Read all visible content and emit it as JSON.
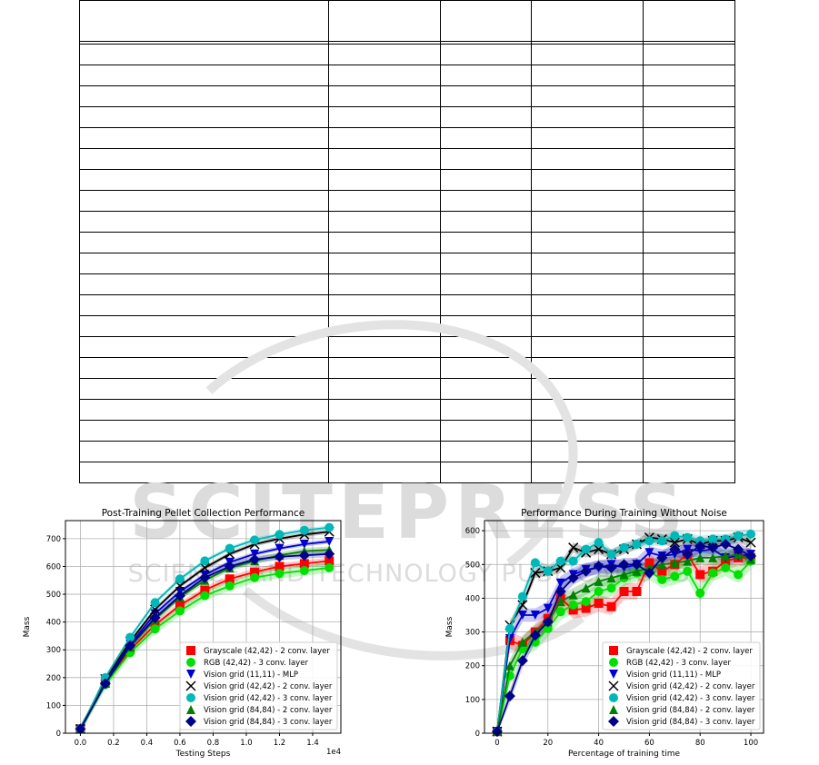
{
  "table": {
    "columns": 5,
    "body_rows": 21
  },
  "watermark": {
    "line1": "SCITEPRESS",
    "line2": "SCIENCE AND TECHNOLOGY PUBLICATIONS",
    "color": "#d9d9d9"
  },
  "colors": {
    "grayscale": "#ff0000",
    "rgb": "#00e000",
    "vision_mlp": "#0000d0",
    "vision_2conv_42": "#000000",
    "vision_3conv_42": "#00b8b8",
    "vision_2conv_84": "#008000",
    "vision_3conv_84": "#00008b"
  },
  "chart_data": [
    {
      "type": "line",
      "title": "Post-Training Pellet Collection Performance",
      "xlabel": "Testing Steps",
      "ylabel": "Mass",
      "x_offset_label": "1e4",
      "xlim": [
        -0.09,
        1.57
      ],
      "ylim": [
        0,
        765
      ],
      "xticks": [
        "0.0",
        "0.2",
        "0.4",
        "0.6",
        "0.8",
        "1.0",
        "1.2",
        "1.4"
      ],
      "xtick_values": [
        0.0,
        0.2,
        0.4,
        0.6,
        0.8,
        1.0,
        1.2,
        1.4
      ],
      "yticks": [
        0,
        100,
        200,
        300,
        400,
        500,
        600,
        700
      ],
      "grid": true,
      "legend_position": "bottom-right",
      "x": [
        0.0,
        0.15,
        0.3,
        0.45,
        0.6,
        0.75,
        0.9,
        1.05,
        1.2,
        1.35,
        1.5
      ],
      "series": [
        {
          "name": "Grayscale (42,42) - 2 conv. layer",
          "marker": "square",
          "color": "#ff0000",
          "values": [
            15,
            180,
            300,
            390,
            460,
            515,
            555,
            580,
            600,
            610,
            620
          ],
          "band": 12
        },
        {
          "name": "RGB (42,42) - 3 conv. layer",
          "marker": "circle",
          "color": "#00e000",
          "values": [
            15,
            175,
            290,
            375,
            440,
            495,
            530,
            560,
            575,
            585,
            595
          ],
          "band": 18
        },
        {
          "name": "Vision grid (11,11) - MLP",
          "marker": "triangle-down",
          "color": "#0000d0",
          "values": [
            15,
            190,
            320,
            430,
            510,
            570,
            615,
            645,
            665,
            680,
            690
          ],
          "band": 8
        },
        {
          "name": "Vision grid (42,42) - 2 conv. layer",
          "marker": "x",
          "color": "#000000",
          "values": [
            15,
            195,
            330,
            445,
            530,
            595,
            645,
            680,
            700,
            715,
            725
          ],
          "band": 8
        },
        {
          "name": "Vision grid (42,42) - 3 conv. layer",
          "marker": "circle",
          "color": "#00b8b8",
          "values": [
            15,
            200,
            345,
            470,
            555,
            620,
            665,
            695,
            715,
            730,
            740
          ],
          "band": 8
        },
        {
          "name": "Vision grid (84,84) - 2 conv. layer",
          "marker": "triangle-up",
          "color": "#008000",
          "values": [
            15,
            180,
            310,
            410,
            490,
            550,
            595,
            620,
            640,
            655,
            660
          ],
          "band": 12
        },
        {
          "name": "Vision grid (84,84) - 3 conv. layer",
          "marker": "diamond",
          "color": "#00008b",
          "values": [
            15,
            178,
            315,
            415,
            495,
            560,
            600,
            625,
            635,
            640,
            645
          ],
          "band": 12
        }
      ]
    },
    {
      "type": "line",
      "title": "Performance During Training Without Noise",
      "xlabel": "Percentage of training time",
      "ylabel": "Mass",
      "xlim": [
        -5,
        105
      ],
      "ylim": [
        0,
        630
      ],
      "xticks": [
        "0",
        "20",
        "40",
        "60",
        "80",
        "100"
      ],
      "xtick_values": [
        0,
        20,
        40,
        60,
        80,
        100
      ],
      "yticks": [
        0,
        100,
        200,
        300,
        400,
        500,
        600
      ],
      "grid": true,
      "legend_position": "bottom-right",
      "x": [
        0,
        5,
        10,
        15,
        20,
        25,
        30,
        35,
        40,
        45,
        50,
        55,
        60,
        65,
        70,
        75,
        80,
        85,
        90,
        95,
        100
      ],
      "series": [
        {
          "name": "Grayscale (42,42) - 2 conv. layer",
          "marker": "square",
          "color": "#ff0000",
          "values": [
            5,
            275,
            260,
            300,
            340,
            400,
            365,
            370,
            385,
            375,
            420,
            420,
            505,
            480,
            500,
            530,
            470,
            480,
            510,
            520,
            520
          ],
          "band": 25
        },
        {
          "name": "RGB (42,42) - 3 conv. layer",
          "marker": "circle",
          "color": "#00e000",
          "values": [
            5,
            170,
            250,
            270,
            310,
            360,
            380,
            390,
            420,
            430,
            460,
            475,
            480,
            455,
            465,
            480,
            415,
            475,
            490,
            470,
            510
          ],
          "band": 25
        },
        {
          "name": "Vision grid (11,11) - MLP",
          "marker": "triangle-down",
          "color": "#0000d0",
          "values": [
            5,
            280,
            350,
            350,
            370,
            445,
            470,
            485,
            490,
            500,
            490,
            500,
            535,
            525,
            530,
            545,
            540,
            545,
            520,
            525,
            530
          ],
          "band": 20
        },
        {
          "name": "Vision grid (42,42) - 2 conv. layer",
          "marker": "x",
          "color": "#000000",
          "values": [
            5,
            320,
            380,
            475,
            480,
            490,
            550,
            535,
            545,
            530,
            545,
            560,
            580,
            575,
            565,
            575,
            560,
            570,
            570,
            580,
            565
          ],
          "band": 15
        },
        {
          "name": "Vision grid (42,42) - 3 conv. layer",
          "marker": "circle",
          "color": "#00b8b8",
          "values": [
            5,
            310,
            405,
            505,
            480,
            510,
            510,
            545,
            565,
            530,
            550,
            560,
            570,
            570,
            585,
            580,
            570,
            575,
            575,
            585,
            590
          ],
          "band": 15
        },
        {
          "name": "Vision grid (84,84) - 2 conv. layer",
          "marker": "triangle-up",
          "color": "#008000",
          "values": [
            5,
            200,
            270,
            300,
            330,
            390,
            410,
            430,
            450,
            460,
            470,
            480,
            490,
            500,
            505,
            510,
            520,
            520,
            525,
            530,
            515
          ],
          "band": 20
        },
        {
          "name": "Vision grid (84,84) - 3 conv. layer",
          "marker": "diamond",
          "color": "#00008b",
          "values": [
            5,
            110,
            215,
            290,
            330,
            420,
            460,
            480,
            495,
            490,
            500,
            500,
            475,
            520,
            545,
            530,
            555,
            550,
            560,
            545,
            525
          ],
          "band": 20
        }
      ]
    }
  ]
}
